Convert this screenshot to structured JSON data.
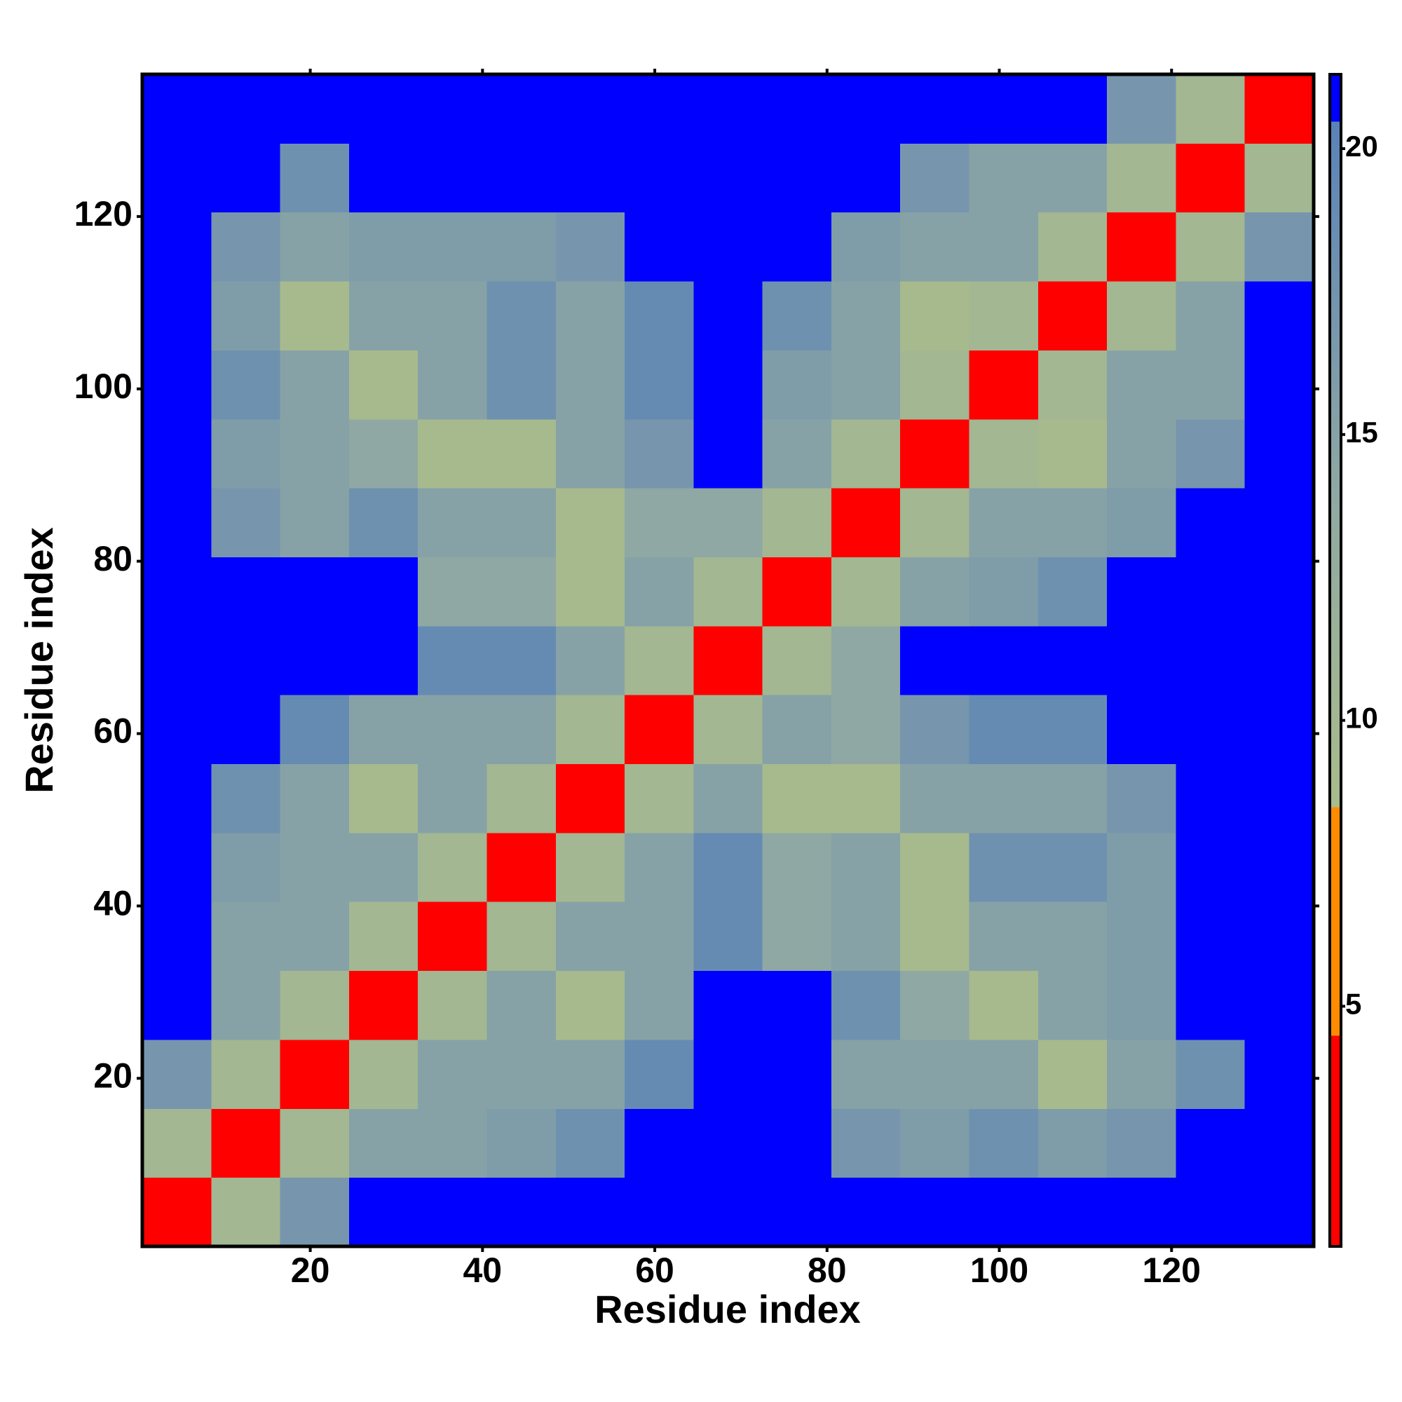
{
  "chart_data": {
    "type": "heatmap",
    "xlabel": "Residue index",
    "ylabel": "Residue index",
    "x_bins": [
      0.5,
      8.5,
      16.5,
      24.5,
      32.5,
      40.5,
      48.5,
      56.5,
      64.5,
      72.5,
      80.5,
      88.5,
      96.5,
      104.5,
      112.5,
      120.5,
      128.5,
      136.5
    ],
    "y_bins": [
      0.5,
      8.5,
      16.5,
      24.5,
      32.5,
      40.5,
      48.5,
      56.5,
      64.5,
      72.5,
      80.5,
      88.5,
      96.5,
      104.5,
      112.5,
      120.5,
      128.5,
      136.5
    ],
    "z": [
      [
        3,
        10,
        17,
        21,
        21,
        21,
        21,
        21,
        21,
        21,
        21,
        21,
        21,
        21,
        21,
        21,
        21
      ],
      [
        10,
        3,
        10,
        15,
        15,
        16,
        18,
        21,
        21,
        21,
        17,
        16,
        18,
        16,
        17,
        21,
        21
      ],
      [
        17,
        10,
        3,
        10,
        15,
        15,
        15,
        19,
        21,
        21,
        15,
        15,
        15,
        9,
        15,
        18,
        21
      ],
      [
        21,
        15,
        10,
        3,
        10,
        15,
        9,
        15,
        21,
        21,
        18,
        14,
        9,
        15,
        16,
        21,
        21
      ],
      [
        21,
        15,
        15,
        10,
        3,
        10,
        15,
        15,
        19,
        14,
        15,
        9,
        15,
        15,
        16,
        21,
        21
      ],
      [
        21,
        16,
        15,
        15,
        10,
        3,
        10,
        15,
        19,
        14,
        15,
        9,
        18,
        18,
        16,
        21,
        21
      ],
      [
        21,
        18,
        15,
        9,
        15,
        10,
        3,
        10,
        15,
        9,
        9,
        15,
        15,
        15,
        17,
        21,
        21
      ],
      [
        21,
        21,
        19,
        15,
        15,
        15,
        10,
        3,
        10,
        15,
        14,
        17,
        19,
        19,
        21,
        21,
        21
      ],
      [
        21,
        21,
        21,
        21,
        19,
        19,
        15,
        10,
        3,
        10,
        14,
        21,
        21,
        21,
        21,
        21,
        21
      ],
      [
        21,
        21,
        21,
        21,
        14,
        14,
        9,
        15,
        10,
        3,
        10,
        15,
        16,
        18,
        21,
        21,
        21
      ],
      [
        21,
        17,
        15,
        18,
        15,
        15,
        9,
        14,
        14,
        10,
        3,
        10,
        15,
        15,
        16,
        21,
        21
      ],
      [
        21,
        16,
        15,
        14,
        9,
        9,
        15,
        17,
        21,
        15,
        10,
        3,
        10,
        9,
        15,
        17,
        21
      ],
      [
        21,
        18,
        15,
        9,
        15,
        18,
        15,
        19,
        21,
        16,
        15,
        10,
        3,
        10,
        15,
        15,
        21
      ],
      [
        21,
        16,
        9,
        15,
        15,
        18,
        15,
        19,
        21,
        18,
        15,
        9,
        10,
        3,
        10,
        15,
        21
      ],
      [
        21,
        17,
        15,
        16,
        16,
        16,
        17,
        21,
        21,
        21,
        16,
        15,
        15,
        10,
        3,
        10,
        17
      ],
      [
        21,
        21,
        18,
        21,
        21,
        21,
        21,
        21,
        21,
        21,
        21,
        17,
        15,
        15,
        10,
        3,
        10
      ],
      [
        21,
        21,
        21,
        21,
        21,
        21,
        21,
        21,
        21,
        21,
        21,
        21,
        21,
        21,
        17,
        10,
        3
      ]
    ],
    "xlim": [
      0.5,
      136.5
    ],
    "ylim": [
      0.5,
      136.5
    ],
    "xticks": [
      20,
      40,
      60,
      80,
      100,
      120
    ],
    "yticks": [
      20,
      40,
      60,
      80,
      100,
      120
    ],
    "clim": [
      0.8,
      21.3
    ],
    "cticks": [
      5,
      10,
      15,
      20
    ],
    "colorscale": [
      {
        "value": 0.8,
        "color": "#ff0000"
      },
      {
        "value": 4.5,
        "color": "#ff0000"
      },
      {
        "value": 4.5,
        "color": "#ff8c00"
      },
      {
        "value": 8.5,
        "color": "#ff8c00"
      },
      {
        "value": 8.5,
        "color": "#a9bc8b"
      },
      {
        "value": 14,
        "color": "#8fa8a3"
      },
      {
        "value": 20.5,
        "color": "#5a82b8"
      },
      {
        "value": 20.5,
        "color": "#0000ff"
      },
      {
        "value": 21.3,
        "color": "#0000ff"
      }
    ]
  }
}
